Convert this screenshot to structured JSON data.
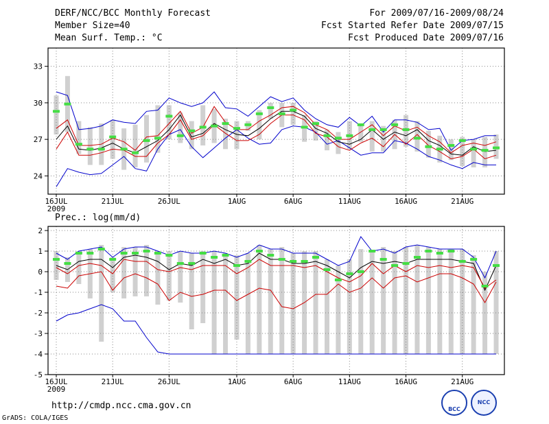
{
  "header": {
    "title": "DERF/NCC/BCC Monthly Forecast",
    "member_size": "Member Size=40",
    "variable": "Mean Surf. Temp.: °C",
    "period": "For 2009/07/16-2009/08/24",
    "started": "Fcst Started Refer Date 2009/07/15",
    "produced": "Fcst Produced Date 2009/07/16"
  },
  "footer": {
    "url": "http://cmdp.ncc.cma.gov.cn",
    "credit": "GrADS: COLA/IGES",
    "logo_left": "BCC",
    "logo_right": "NCC"
  },
  "colors": {
    "max_min": "#0000cc",
    "spread": "#cc0000",
    "mean": "#000000",
    "marker": "#44dd44",
    "bar": "#d0d0d0",
    "grid": "#888888"
  },
  "chart_data": [
    {
      "type": "line",
      "title": "Mean Surf. Temp.: °C",
      "days": 40,
      "x_tick_labels": [
        "16JUL",
        "21JUL",
        "26JUL",
        "1AUG",
        "6AUG",
        "11AUG",
        "16AUG",
        "21AUG"
      ],
      "x_tick_days": [
        1,
        6,
        11,
        17,
        22,
        27,
        32,
        37
      ],
      "year_label": "2009",
      "ylim": [
        22.5,
        34.5
      ],
      "y_ticks": [
        24,
        27,
        30,
        33
      ],
      "series": [
        {
          "name": "max",
          "color": "blue",
          "values": [
            23.1,
            24.6,
            24.3,
            24.1,
            24.2,
            24.9,
            25.6,
            24.6,
            24.4,
            26.2,
            27.4,
            27.8,
            26.4,
            25.5,
            26.3,
            27.1,
            27.8,
            27.1,
            26.6,
            26.7,
            27.8,
            28.1,
            28.0,
            27.6,
            26.6,
            26.9,
            26.3,
            25.7,
            25.9,
            25.9,
            26.9,
            26.7,
            26.2,
            25.6,
            25.3,
            24.9,
            24.6,
            25.1,
            24.9,
            24.9
          ]
        },
        {
          "name": "lower",
          "color": "red",
          "values": [
            26.2,
            27.6,
            25.7,
            25.7,
            25.9,
            26.2,
            26.1,
            25.6,
            25.6,
            26.7,
            27.4,
            28.6,
            27.0,
            27.3,
            28.2,
            27.5,
            26.9,
            26.9,
            27.4,
            28.3,
            29.0,
            29.0,
            28.6,
            27.5,
            27.2,
            26.4,
            26.1,
            26.7,
            27.1,
            26.4,
            27.4,
            26.6,
            27.4,
            26.5,
            26.0,
            25.4,
            25.6,
            26.2,
            25.4,
            25.7
          ]
        },
        {
          "name": "mean",
          "color": "black",
          "values": [
            27.0,
            28.1,
            26.2,
            26.1,
            26.3,
            26.7,
            26.2,
            25.9,
            26.4,
            26.9,
            27.8,
            29.0,
            27.2,
            27.5,
            28.3,
            27.8,
            27.4,
            27.3,
            27.9,
            28.7,
            29.3,
            29.3,
            28.9,
            27.9,
            27.5,
            26.8,
            26.6,
            27.0,
            27.8,
            27.0,
            27.6,
            27.3,
            27.8,
            26.9,
            26.5,
            25.8,
            25.7,
            26.4,
            26.0,
            26.1
          ]
        },
        {
          "name": "upper",
          "color": "red",
          "values": [
            27.9,
            28.6,
            26.5,
            26.5,
            26.6,
            27.1,
            26.8,
            26.1,
            27.2,
            27.3,
            28.3,
            29.3,
            27.5,
            28.0,
            29.7,
            28.4,
            27.8,
            27.8,
            28.5,
            29.0,
            29.6,
            29.7,
            29.2,
            28.2,
            27.8,
            27.0,
            27.0,
            27.6,
            28.2,
            27.3,
            28.1,
            27.7,
            28.0,
            27.3,
            26.8,
            25.9,
            26.5,
            26.7,
            26.5,
            26.8
          ]
        },
        {
          "name": "min",
          "color": "blue",
          "values": [
            30.9,
            30.6,
            27.8,
            27.9,
            28.1,
            28.6,
            28.4,
            28.3,
            29.3,
            29.4,
            30.4,
            30.0,
            29.7,
            30.0,
            30.9,
            29.6,
            29.5,
            28.9,
            29.7,
            30.5,
            30.1,
            30.4,
            29.4,
            28.7,
            28.2,
            28.0,
            28.8,
            28.1,
            28.9,
            27.6,
            28.6,
            28.6,
            28.4,
            27.8,
            27.9,
            26.1,
            26.9,
            27.0,
            27.3,
            27.3
          ]
        }
      ],
      "markers": [
        29.3,
        29.9,
        26.6,
        26.2,
        26.2,
        27.2,
        26.2,
        25.9,
        26.9,
        27.1,
        28.9,
        27.3,
        27.7,
        28.0,
        28.1,
        28.3,
        27.9,
        28.2,
        29.1,
        29.6,
        29.1,
        29.4,
        28.0,
        28.3,
        27.3,
        27.1,
        27.3,
        28.2,
        27.8,
        27.8,
        28.2,
        27.8,
        27.1,
        26.4,
        26.2,
        26.5,
        26.9,
        26.2,
        26.1,
        26.3
      ],
      "bars": [
        [
          27.4,
          30.6
        ],
        [
          27.6,
          32.2
        ],
        [
          25.8,
          28.5
        ],
        [
          24.9,
          28.0
        ],
        [
          24.9,
          28.3
        ],
        [
          25.4,
          28.6
        ],
        [
          24.5,
          27.9
        ],
        [
          24.7,
          28.2
        ],
        [
          25.1,
          29.0
        ],
        [
          25.9,
          29.8
        ],
        [
          27.0,
          29.8
        ],
        [
          26.7,
          29.2
        ],
        [
          26.2,
          28.5
        ],
        [
          26.5,
          29.8
        ],
        [
          26.7,
          29.5
        ],
        [
          26.2,
          28.7
        ],
        [
          26.2,
          28.5
        ],
        [
          27.7,
          28.5
        ],
        [
          27.0,
          29.4
        ],
        [
          28.7,
          30.0
        ],
        [
          28.0,
          30.0
        ],
        [
          28.2,
          30.0
        ],
        [
          26.8,
          29.0
        ],
        [
          26.9,
          28.5
        ],
        [
          26.1,
          27.8
        ],
        [
          25.8,
          27.6
        ],
        [
          26.2,
          28.5
        ],
        [
          26.8,
          28.3
        ],
        [
          26.0,
          28.5
        ],
        [
          26.0,
          28.1
        ],
        [
          26.2,
          28.6
        ],
        [
          26.4,
          29.0
        ],
        [
          26.0,
          28.5
        ],
        [
          25.5,
          27.7
        ],
        [
          25.1,
          27.3
        ],
        [
          25.3,
          27.0
        ],
        [
          24.8,
          27.2
        ],
        [
          24.7,
          27.0
        ],
        [
          24.7,
          27.2
        ],
        [
          25.4,
          27.4
        ]
      ]
    },
    {
      "type": "line",
      "title": "Prec.: log(mm/d)",
      "days": 40,
      "x_tick_labels": [
        "16JUL",
        "21JUL",
        "26JUL",
        "1AUG",
        "6AUG",
        "11AUG",
        "16AUG",
        "21AUG"
      ],
      "x_tick_days": [
        1,
        6,
        11,
        17,
        22,
        27,
        32,
        37
      ],
      "year_label": "2009",
      "ylim": [
        -5,
        2.2
      ],
      "y_ticks": [
        -5,
        -4,
        -3,
        -2,
        -1,
        0,
        1,
        2
      ],
      "series": [
        {
          "name": "min",
          "color": "blue",
          "values": [
            -2.4,
            -2.1,
            -2.0,
            -1.8,
            -1.6,
            -1.8,
            -2.4,
            -2.4,
            -3.2,
            -3.9,
            -4.0,
            -4.0,
            -4.0,
            -4.0,
            -4.0,
            -4.0,
            -4.0,
            -4.0,
            -4.0,
            -4.0,
            -4.0,
            -4.0,
            -4.0,
            -4.0,
            -4.0,
            -4.0,
            -4.0,
            -4.0,
            -4.0,
            -4.0,
            -4.0,
            -4.0,
            -4.0,
            -4.0,
            -4.0,
            -4.0,
            -4.0,
            -4.0,
            -4.0,
            -4.0
          ]
        },
        {
          "name": "lower",
          "color": "red",
          "values": [
            -0.7,
            -0.8,
            -0.2,
            -0.1,
            0.0,
            -0.9,
            -0.3,
            -0.1,
            -0.3,
            -0.6,
            -1.4,
            -1.0,
            -1.2,
            -1.1,
            -0.9,
            -0.9,
            -1.4,
            -1.1,
            -0.8,
            -0.9,
            -1.7,
            -1.8,
            -1.5,
            -1.1,
            -1.1,
            -0.6,
            -1.0,
            -0.8,
            -0.3,
            -0.8,
            -0.3,
            -0.2,
            -0.5,
            -0.3,
            -0.1,
            -0.1,
            -0.3,
            -0.6,
            -1.5,
            -0.5
          ]
        },
        {
          "name": "mean",
          "color": "black",
          "values": [
            0.3,
            0.1,
            0.5,
            0.6,
            0.6,
            0.2,
            0.7,
            0.8,
            0.7,
            0.5,
            0.1,
            0.4,
            0.3,
            0.6,
            0.4,
            0.6,
            0.3,
            0.4,
            0.9,
            0.6,
            0.6,
            0.4,
            0.4,
            0.5,
            0.3,
            0.0,
            -0.3,
            0.2,
            0.5,
            0.4,
            0.5,
            0.4,
            0.6,
            0.6,
            0.6,
            0.6,
            0.5,
            0.4,
            -0.9,
            0.3
          ]
        },
        {
          "name": "upper",
          "color": "red",
          "values": [
            0.2,
            -0.1,
            0.3,
            0.4,
            0.3,
            -0.1,
            0.6,
            0.5,
            0.5,
            0.1,
            0.0,
            0.2,
            0.1,
            0.3,
            0.3,
            0.3,
            -0.1,
            0.2,
            0.6,
            0.3,
            0.3,
            0.3,
            0.2,
            0.3,
            0.0,
            -0.3,
            -0.5,
            -0.2,
            0.4,
            -0.1,
            0.3,
            0.0,
            0.3,
            0.2,
            0.3,
            0.2,
            0.3,
            0.2,
            -0.8,
            -0.4
          ]
        },
        {
          "name": "max",
          "color": "blue",
          "values": [
            0.9,
            0.6,
            1.0,
            1.1,
            1.2,
            0.7,
            1.1,
            1.2,
            1.2,
            1.0,
            0.8,
            1.0,
            0.9,
            0.9,
            1.0,
            0.9,
            0.7,
            0.9,
            1.3,
            1.1,
            1.1,
            0.9,
            0.9,
            0.9,
            0.6,
            0.3,
            0.5,
            1.7,
            1.0,
            1.1,
            0.9,
            1.2,
            1.3,
            1.2,
            1.1,
            1.1,
            1.1,
            0.7,
            -0.3,
            1.0
          ]
        }
      ],
      "markers": [
        0.6,
        0.4,
        0.9,
        0.9,
        1.1,
        0.6,
        0.9,
        0.9,
        1.0,
        0.9,
        0.8,
        0.4,
        0.4,
        0.9,
        0.7,
        0.8,
        0.3,
        0.5,
        1.0,
        0.8,
        0.6,
        0.5,
        0.5,
        0.7,
        0.1,
        -0.4,
        -0.1,
        0.0,
        1.0,
        0.6,
        0.3,
        0.4,
        0.7,
        1.0,
        0.9,
        1.0,
        0.5,
        0.6,
        -0.7,
        0.3
      ],
      "bars": [
        [
          -0.4,
          1.0
        ],
        [
          -0.5,
          0.7
        ],
        [
          -0.6,
          1.0
        ],
        [
          -1.3,
          1.1
        ],
        [
          -3.4,
          1.3
        ],
        [
          -1.0,
          0.7
        ],
        [
          -1.3,
          1.2
        ],
        [
          -1.2,
          1.2
        ],
        [
          -1.2,
          1.3
        ],
        [
          -1.6,
          1.0
        ],
        [
          -1.4,
          1.0
        ],
        [
          -1.5,
          1.0
        ],
        [
          -2.8,
          0.9
        ],
        [
          -2.5,
          1.0
        ],
        [
          -4.0,
          1.0
        ],
        [
          -4.0,
          0.9
        ],
        [
          -3.3,
          0.8
        ],
        [
          -4.0,
          0.9
        ],
        [
          -4.0,
          1.3
        ],
        [
          -4.0,
          1.1
        ],
        [
          -4.0,
          1.2
        ],
        [
          -4.0,
          0.9
        ],
        [
          -4.0,
          1.0
        ],
        [
          -4.0,
          1.0
        ],
        [
          -4.0,
          0.6
        ],
        [
          -4.0,
          0.3
        ],
        [
          -4.0,
          0.6
        ],
        [
          -4.0,
          1.1
        ],
        [
          -4.0,
          1.0
        ],
        [
          -4.0,
          1.2
        ],
        [
          -4.0,
          1.0
        ],
        [
          -4.0,
          1.2
        ],
        [
          -4.0,
          1.3
        ],
        [
          -4.0,
          1.2
        ],
        [
          -4.0,
          1.1
        ],
        [
          -4.0,
          1.1
        ],
        [
          -4.0,
          1.1
        ],
        [
          -4.0,
          0.8
        ],
        [
          -4.0,
          0.0
        ],
        [
          -4.0,
          1.0
        ]
      ]
    }
  ]
}
